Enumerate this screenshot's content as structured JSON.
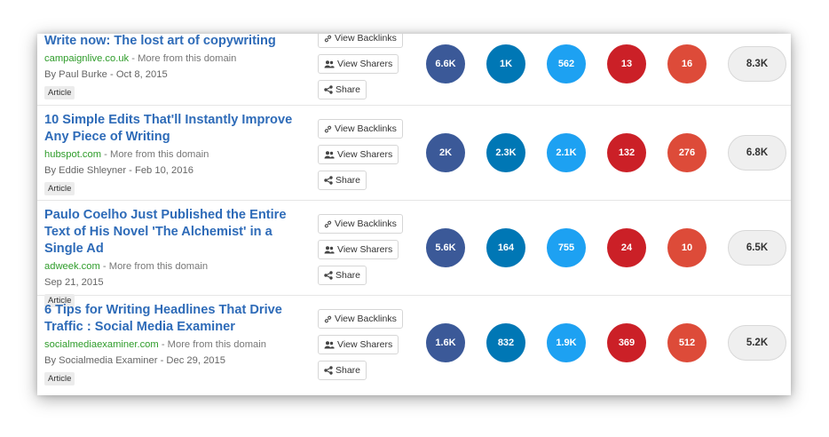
{
  "colors": {
    "facebook": "#3b5998",
    "linkedin": "#0077b5",
    "twitter": "#1da1f2",
    "pinterest": "#cb2027",
    "google_plus": "#dd4b39",
    "total": "#efefef"
  },
  "buttons": {
    "view_backlinks": "View Backlinks",
    "view_sharers": "View Sharers",
    "share": "Share"
  },
  "icons": {
    "backlinks": "link-icon",
    "sharers": "users-icon",
    "share": "share-icon"
  },
  "articles": [
    {
      "title_prefix": "Write now: The lost art of ",
      "title_bold": "copywriting",
      "domain": "campaignlive.co.uk",
      "more": " - More from this domain",
      "byline": "By Paul Burke - Oct 8, 2015",
      "type": "Article",
      "facebook": "6.6K",
      "linkedin": "1K",
      "twitter": "562",
      "pinterest": "13",
      "google_plus": "16",
      "total": "8.3K"
    },
    {
      "title_prefix": "10 Simple Edits That'll Instantly Improve Any Piece of Writing",
      "title_bold": "",
      "domain": "hubspot.com",
      "more": " - More from this domain",
      "byline": "By Eddie Shleyner - Feb 10, 2016",
      "type": "Article",
      "facebook": "2K",
      "linkedin": "2.3K",
      "twitter": "2.1K",
      "pinterest": "132",
      "google_plus": "276",
      "total": "6.8K"
    },
    {
      "title_prefix": "Paulo Coelho Just Published the Entire Text of His Novel 'The Alchemist' in a Single Ad",
      "title_bold": "",
      "domain": "adweek.com",
      "more": " - More from this domain",
      "byline": "Sep 21, 2015",
      "type": "Article",
      "facebook": "5.6K",
      "linkedin": "164",
      "twitter": "755",
      "pinterest": "24",
      "google_plus": "10",
      "total": "6.5K"
    },
    {
      "title_prefix": "6 Tips for Writing Headlines That Drive Traffic : Social Media Examiner",
      "title_bold": "",
      "domain": "socialmediaexaminer.com",
      "more": " - More from this domain",
      "byline": "By Socialmedia Examiner - Dec 29, 2015",
      "type": "Article",
      "facebook": "1.6K",
      "linkedin": "832",
      "twitter": "1.9K",
      "pinterest": "369",
      "google_plus": "512",
      "total": "5.2K"
    }
  ]
}
